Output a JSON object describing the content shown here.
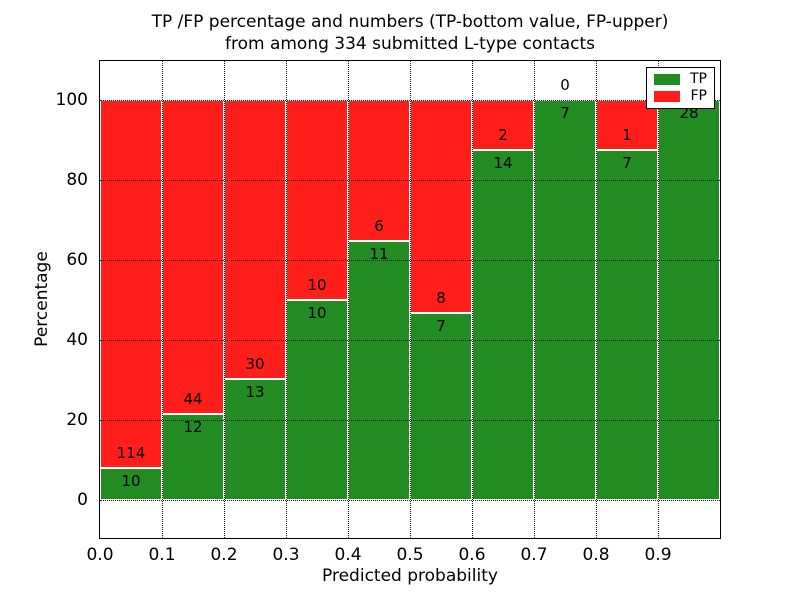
{
  "figure": {
    "title_line1": "TP /FP percentage and numbers (TP-bottom value, FP-upper)",
    "title_line2": "from among 334 submitted L-type contacts"
  },
  "chart_data": {
    "type": "bar",
    "subtype": "stacked-percentage-histogram",
    "title": "TP /FP percentage and numbers (TP-bottom value, FP-upper)\nfrom among 334 submitted L-type contacts",
    "xlabel": "Predicted probability",
    "ylabel": "Percentage",
    "total_contacts": 334,
    "xlim": [
      0.0,
      1.0
    ],
    "ylim_display": [
      -9.8,
      110
    ],
    "bin_width": 0.1,
    "x_ticks": [
      0.0,
      0.1,
      0.2,
      0.3,
      0.4,
      0.5,
      0.6,
      0.7,
      0.8,
      0.9
    ],
    "x_tick_labels": [
      "0.0",
      "0.1",
      "0.2",
      "0.3",
      "0.4",
      "0.5",
      "0.6",
      "0.7",
      "0.8",
      "0.9"
    ],
    "y_ticks": [
      0,
      20,
      40,
      60,
      80,
      100
    ],
    "y_tick_labels": [
      "0",
      "20",
      "40",
      "60",
      "80",
      "100"
    ],
    "grid": {
      "visible": true,
      "style": "dotted"
    },
    "categories": [
      "0.0-0.1",
      "0.1-0.2",
      "0.2-0.3",
      "0.3-0.4",
      "0.4-0.5",
      "0.5-0.6",
      "0.6-0.7",
      "0.7-0.8",
      "0.8-0.9",
      "0.9-1.0"
    ],
    "series": [
      {
        "name": "TP",
        "color": "#228b22",
        "counts": [
          10,
          12,
          13,
          10,
          11,
          7,
          14,
          7,
          7,
          28
        ]
      },
      {
        "name": "FP",
        "color": "#ff1e1a",
        "counts": [
          114,
          44,
          30,
          10,
          6,
          8,
          2,
          0,
          1,
          0
        ]
      }
    ],
    "bar_label_note": "TP count printed at bottom of boundary, FP count printed above boundary",
    "legend": {
      "position": "upper right",
      "entries": [
        {
          "label": "TP",
          "color": "#228b22"
        },
        {
          "label": "FP",
          "color": "#ff1e1a"
        }
      ]
    }
  }
}
